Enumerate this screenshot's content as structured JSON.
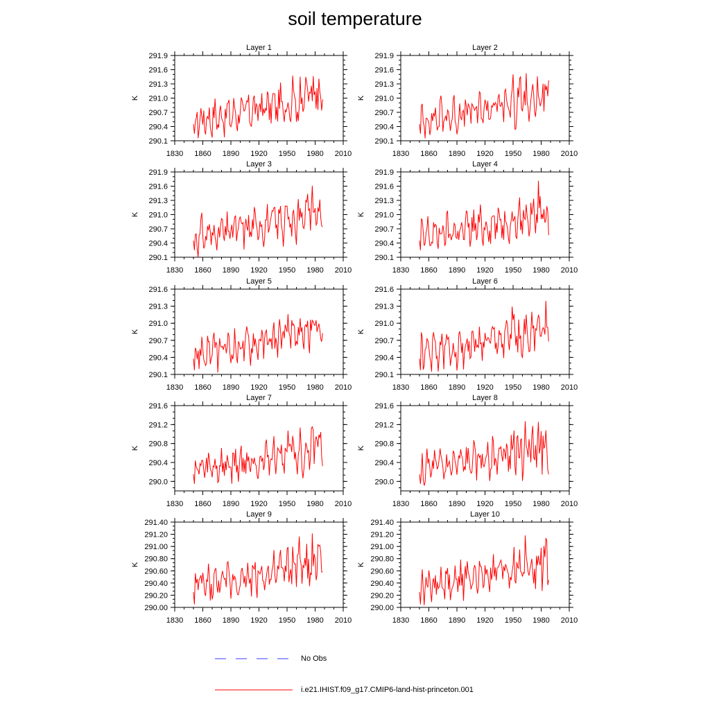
{
  "title": "soil temperature",
  "line_color": "#ff0000",
  "obs_color": "#3b3bff",
  "legend": {
    "obs_label": "No Obs",
    "model_label": "i.e21.IHIST.f09_g17.CMIP6-land-hist-princeton.001"
  },
  "chart_data": [
    {
      "type": "line",
      "title": "Layer 1",
      "ylabel": "K",
      "xlim": [
        1830,
        2010
      ],
      "ylim": [
        290.1,
        291.9
      ],
      "yticks": [
        "290.1",
        "290.4",
        "290.7",
        "291.0",
        "291.3",
        "291.6",
        "291.9"
      ],
      "xticks": [
        "1830",
        "1860",
        "1890",
        "1920",
        "1950",
        "1980",
        "2010"
      ]
    },
    {
      "type": "line",
      "title": "Layer 2",
      "ylabel": "K",
      "xlim": [
        1830,
        2010
      ],
      "ylim": [
        290.1,
        291.9
      ],
      "yticks": [
        "290.1",
        "290.4",
        "290.7",
        "291.0",
        "291.3",
        "291.6",
        "291.9"
      ],
      "xticks": [
        "1830",
        "1860",
        "1890",
        "1920",
        "1950",
        "1980",
        "2010"
      ]
    },
    {
      "type": "line",
      "title": "Layer 3",
      "ylabel": "K",
      "xlim": [
        1830,
        2010
      ],
      "ylim": [
        290.1,
        291.9
      ],
      "yticks": [
        "290.1",
        "290.4",
        "290.7",
        "291.0",
        "291.3",
        "291.6",
        "291.9"
      ],
      "xticks": [
        "1830",
        "1860",
        "1890",
        "1920",
        "1950",
        "1980",
        "2010"
      ]
    },
    {
      "type": "line",
      "title": "Layer 4",
      "ylabel": "K",
      "xlim": [
        1830,
        2010
      ],
      "ylim": [
        290.1,
        291.9
      ],
      "yticks": [
        "290.1",
        "290.4",
        "290.7",
        "291.0",
        "291.3",
        "291.6",
        "291.9"
      ],
      "xticks": [
        "1830",
        "1860",
        "1890",
        "1920",
        "1950",
        "1980",
        "2010"
      ]
    },
    {
      "type": "line",
      "title": "Layer 5",
      "ylabel": "K",
      "xlim": [
        1830,
        2010
      ],
      "ylim": [
        290.1,
        291.6
      ],
      "yticks": [
        "290.1",
        "290.4",
        "290.7",
        "291.0",
        "291.3",
        "291.6"
      ],
      "xticks": [
        "1830",
        "1860",
        "1890",
        "1920",
        "1950",
        "1980",
        "2010"
      ]
    },
    {
      "type": "line",
      "title": "Layer 6",
      "ylabel": "K",
      "xlim": [
        1830,
        2010
      ],
      "ylim": [
        290.1,
        291.6
      ],
      "yticks": [
        "290.1",
        "290.4",
        "290.7",
        "291.0",
        "291.3",
        "291.6"
      ],
      "xticks": [
        "1830",
        "1860",
        "1890",
        "1920",
        "1950",
        "1980",
        "2010"
      ]
    },
    {
      "type": "line",
      "title": "Layer 7",
      "ylabel": "K",
      "xlim": [
        1830,
        2010
      ],
      "ylim": [
        289.8,
        291.6
      ],
      "yticks": [
        "290.0",
        "290.4",
        "290.8",
        "291.2",
        "291.6"
      ],
      "xticks": [
        "1830",
        "1860",
        "1890",
        "1920",
        "1950",
        "1980",
        "2010"
      ]
    },
    {
      "type": "line",
      "title": "Layer 8",
      "ylabel": "K",
      "xlim": [
        1830,
        2010
      ],
      "ylim": [
        289.8,
        291.6
      ],
      "yticks": [
        "290.0",
        "290.4",
        "290.8",
        "291.2",
        "291.6"
      ],
      "xticks": [
        "1830",
        "1860",
        "1890",
        "1920",
        "1950",
        "1980",
        "2010"
      ]
    },
    {
      "type": "line",
      "title": "Layer 9",
      "ylabel": "K",
      "xlim": [
        1830,
        2010
      ],
      "ylim": [
        290.0,
        291.4
      ],
      "yticks": [
        "290.00",
        "290.20",
        "290.40",
        "290.60",
        "290.80",
        "291.00",
        "291.20",
        "291.40"
      ],
      "xticks": [
        "1830",
        "1860",
        "1890",
        "1920",
        "1950",
        "1980",
        "2010"
      ]
    },
    {
      "type": "line",
      "title": "Layer 10",
      "ylabel": "K",
      "xlim": [
        1830,
        2010
      ],
      "ylim": [
        290.0,
        291.4
      ],
      "yticks": [
        "290.00",
        "290.20",
        "290.40",
        "290.60",
        "290.80",
        "291.00",
        "291.20",
        "291.40"
      ],
      "xticks": [
        "1830",
        "1860",
        "1890",
        "1920",
        "1950",
        "1980",
        "2010"
      ]
    }
  ]
}
